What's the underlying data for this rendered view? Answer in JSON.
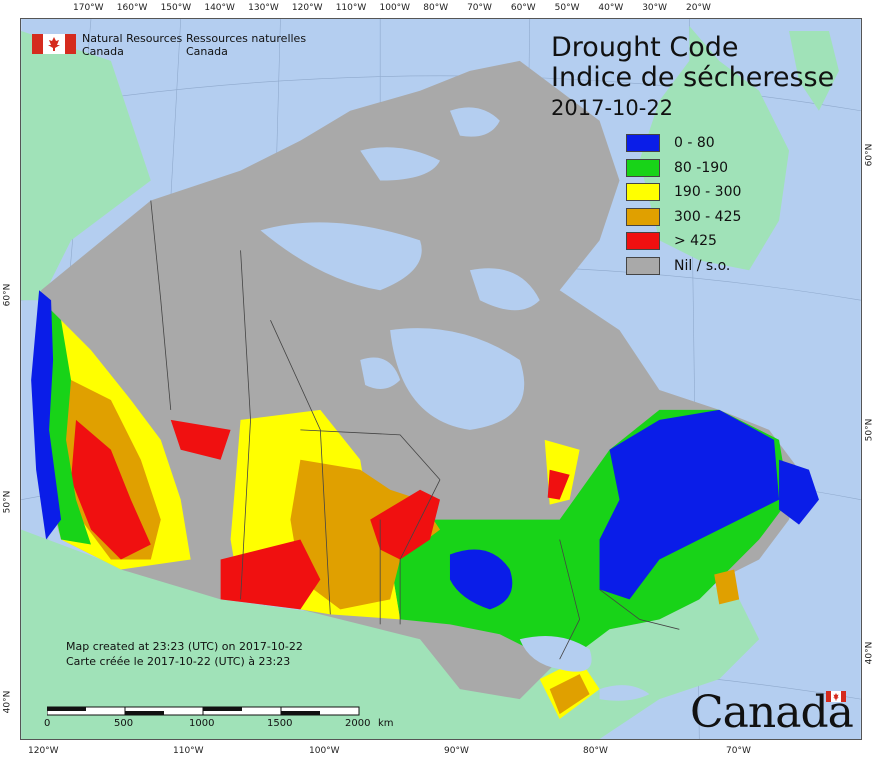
{
  "organization": {
    "en_line1": "Natural Resources",
    "en_line2": "Canada",
    "fr_line1": "Ressources naturelles",
    "fr_line2": "Canada"
  },
  "title": {
    "en": "Drought Code",
    "fr": "Indice de sécheresse",
    "date": "2017-10-22"
  },
  "legend": [
    {
      "label": "0 - 80",
      "color": "#0a1de8"
    },
    {
      "label": "80 -190",
      "color": "#18d318"
    },
    {
      "label": "190 - 300",
      "color": "#ffff00"
    },
    {
      "label": "300 - 425",
      "color": "#e0a000"
    },
    {
      "label": "> 425",
      "color": "#f01010"
    },
    {
      "label": "Nil / s.o.",
      "color": "#a9a9a9"
    }
  ],
  "map_colors": {
    "ocean": "#b4cef0",
    "land_outside": "#a0e2b8",
    "no_data": "#a9a9a9",
    "boundary": "#444444"
  },
  "top_longitude_labels": [
    "170°W",
    "160°W",
    "150°W",
    "140°W",
    "130°W",
    "120°W",
    "110°W",
    "100°W",
    "80°W",
    "70°W",
    "60°W",
    "50°W",
    "40°W",
    "30°W",
    "20°W"
  ],
  "bottom_longitude_labels": [
    "120°W",
    "110°W",
    "100°W",
    "90°W",
    "80°W",
    "70°W"
  ],
  "left_latitude_labels": [
    "60°N",
    "50°N",
    "40°N"
  ],
  "right_latitude_labels": [
    "60°N",
    "50°N",
    "40°N"
  ],
  "created": {
    "en": "Map created at 23:23 (UTC) on 2017-10-22",
    "fr": "Carte créée le 2017-10-22 (UTC) à 23:23"
  },
  "scale": {
    "labels": [
      "0",
      "500",
      "1000",
      "1500",
      "2000"
    ],
    "unit": "km"
  },
  "wordmark": "Canada"
}
